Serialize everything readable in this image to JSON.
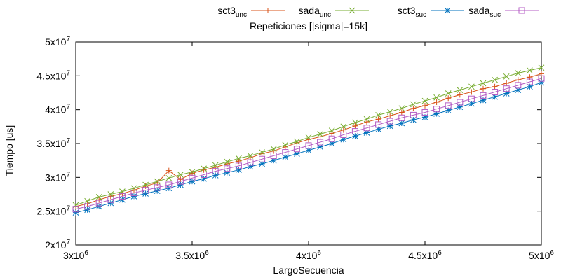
{
  "chart_data": {
    "type": "line",
    "title": "Repeticiones [|sigma|=15k]",
    "xlabel": "LargoSecuencia",
    "ylabel": "Tiempo [us]",
    "xlim": [
      3000000,
      5000000
    ],
    "ylim": [
      20000000,
      50000000
    ],
    "grid": false,
    "legend_position": "top-right, above plot",
    "x_ticks": [
      {
        "value": 3000000,
        "mantissa": "3",
        "exp": "6"
      },
      {
        "value": 3500000,
        "mantissa": "3.5",
        "exp": "6"
      },
      {
        "value": 4000000,
        "mantissa": "4",
        "exp": "6"
      },
      {
        "value": 4500000,
        "mantissa": "4.5",
        "exp": "6"
      },
      {
        "value": 5000000,
        "mantissa": "5",
        "exp": "6"
      }
    ],
    "y_ticks": [
      {
        "value": 20000000,
        "mantissa": "2",
        "exp": "7"
      },
      {
        "value": 25000000,
        "mantissa": "2.5",
        "exp": "7"
      },
      {
        "value": 30000000,
        "mantissa": "3",
        "exp": "7"
      },
      {
        "value": 35000000,
        "mantissa": "3.5",
        "exp": "7"
      },
      {
        "value": 40000000,
        "mantissa": "4",
        "exp": "7"
      },
      {
        "value": 45000000,
        "mantissa": "4.5",
        "exp": "7"
      },
      {
        "value": 50000000,
        "mantissa": "5",
        "exp": "7"
      }
    ],
    "x": [
      3000000,
      3050000,
      3100000,
      3150000,
      3200000,
      3250000,
      3300000,
      3350000,
      3400000,
      3450000,
      3500000,
      3550000,
      3600000,
      3650000,
      3700000,
      3750000,
      3800000,
      3850000,
      3900000,
      3950000,
      4000000,
      4050000,
      4100000,
      4150000,
      4200000,
      4250000,
      4300000,
      4350000,
      4400000,
      4450000,
      4500000,
      4550000,
      4600000,
      4650000,
      4700000,
      4750000,
      4800000,
      4850000,
      4900000,
      4950000,
      5000000
    ],
    "series": [
      {
        "name": "sct3",
        "name_sub": "unc",
        "color": "#d95319",
        "marker": "plus",
        "values": [
          25.7,
          26.1,
          26.7,
          27.2,
          27.6,
          28.1,
          28.7,
          29.2,
          31.0,
          29.7,
          30.6,
          31.1,
          31.5,
          32.0,
          32.4,
          32.9,
          33.5,
          33.9,
          34.5,
          35.1,
          35.6,
          36.0,
          36.5,
          37.0,
          37.6,
          38.2,
          38.6,
          39.1,
          39.6,
          40.2,
          40.6,
          41.1,
          41.7,
          42.2,
          42.6,
          43.1,
          43.4,
          43.9,
          44.4,
          44.8,
          45.3
        ]
      },
      {
        "name": "sada",
        "name_sub": "unc",
        "color": "#77ac30",
        "marker": "x",
        "values": [
          25.9,
          26.5,
          27.1,
          27.5,
          27.9,
          28.4,
          28.9,
          29.4,
          29.9,
          30.4,
          30.8,
          31.3,
          31.8,
          32.3,
          32.8,
          33.2,
          33.7,
          34.2,
          34.8,
          35.3,
          35.9,
          36.4,
          36.9,
          37.5,
          38.1,
          38.6,
          39.2,
          39.7,
          40.2,
          40.8,
          41.3,
          41.8,
          42.4,
          42.9,
          43.4,
          43.9,
          44.4,
          44.9,
          45.4,
          45.8,
          46.2
        ]
      },
      {
        "name": "sct3",
        "name_sub": "suc",
        "color": "#0072bd",
        "marker": "star",
        "values": [
          24.8,
          25.2,
          25.7,
          26.2,
          26.7,
          27.2,
          27.6,
          28.0,
          28.4,
          28.9,
          29.4,
          29.8,
          30.3,
          30.7,
          31.1,
          31.6,
          32.0,
          32.5,
          33.0,
          33.5,
          34.0,
          34.5,
          35.0,
          35.6,
          36.1,
          36.6,
          37.1,
          37.6,
          38.0,
          38.5,
          38.9,
          39.4,
          39.9,
          40.4,
          40.9,
          41.4,
          41.9,
          42.4,
          42.9,
          43.4,
          44.0
        ]
      },
      {
        "name": "sada",
        "name_sub": "suc",
        "color": "#b45cc4",
        "marker": "square",
        "values": [
          25.3,
          25.7,
          26.2,
          26.7,
          27.2,
          27.7,
          28.1,
          28.5,
          28.9,
          29.4,
          29.9,
          30.4,
          30.9,
          31.3,
          31.7,
          32.2,
          32.7,
          33.2,
          33.7,
          34.2,
          34.7,
          35.2,
          35.7,
          36.3,
          36.8,
          37.3,
          37.8,
          38.3,
          38.8,
          39.2,
          39.6,
          40.1,
          40.6,
          41.1,
          41.6,
          42.1,
          42.6,
          43.1,
          43.6,
          44.1,
          44.6
        ]
      }
    ]
  }
}
